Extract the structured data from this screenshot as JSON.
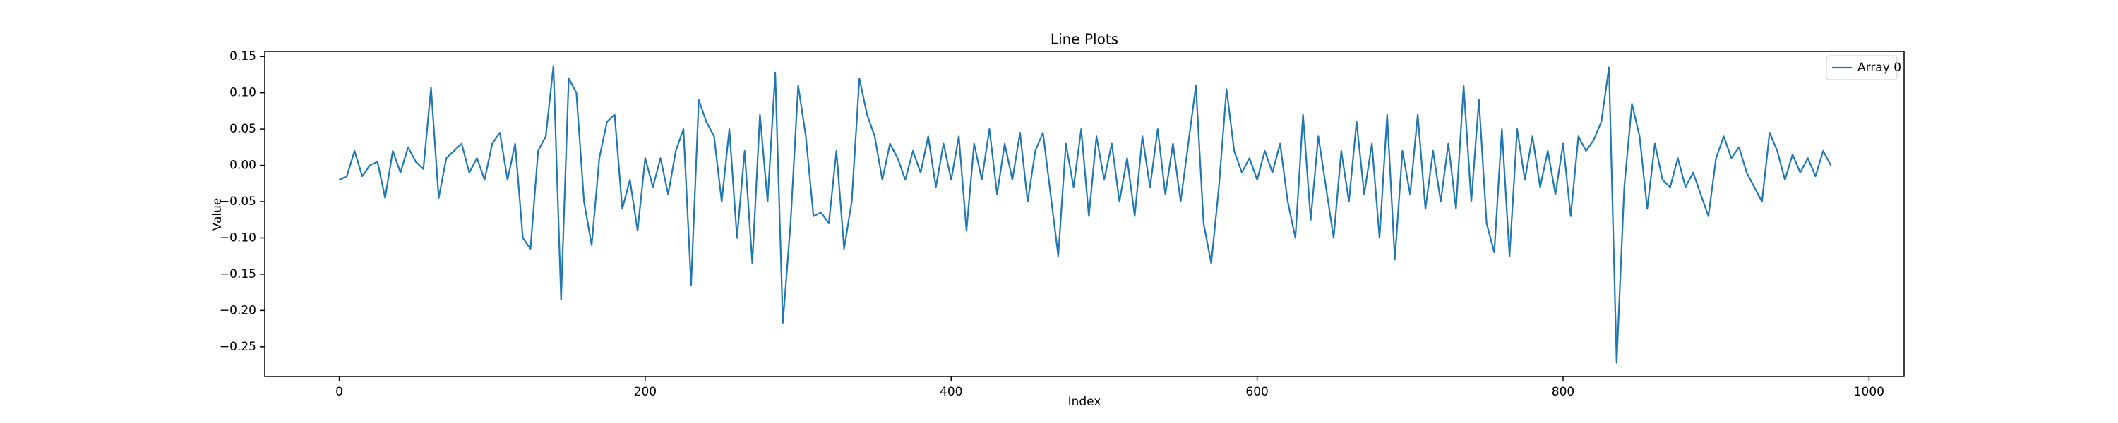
{
  "chart_data": {
    "type": "line",
    "title": "Line Plots",
    "xlabel": "Index",
    "ylabel": "Value",
    "x": [
      0,
      5,
      10,
      15,
      20,
      25,
      30,
      35,
      40,
      45,
      50,
      55,
      60,
      65,
      70,
      75,
      80,
      85,
      90,
      95,
      100,
      105,
      110,
      115,
      120,
      125,
      130,
      135,
      140,
      145,
      150,
      155,
      160,
      165,
      170,
      175,
      180,
      185,
      190,
      195,
      200,
      205,
      210,
      215,
      220,
      225,
      230,
      235,
      240,
      245,
      250,
      255,
      260,
      265,
      270,
      275,
      280,
      285,
      290,
      295,
      300,
      305,
      310,
      315,
      320,
      325,
      330,
      335,
      340,
      345,
      350,
      355,
      360,
      365,
      370,
      375,
      380,
      385,
      390,
      395,
      400,
      405,
      410,
      415,
      420,
      425,
      430,
      435,
      440,
      445,
      450,
      455,
      460,
      465,
      470,
      475,
      480,
      485,
      490,
      495,
      500,
      505,
      510,
      515,
      520,
      525,
      530,
      535,
      540,
      545,
      550,
      555,
      560,
      565,
      570,
      575,
      580,
      585,
      590,
      595,
      600,
      605,
      610,
      615,
      620,
      625,
      630,
      635,
      640,
      645,
      650,
      655,
      660,
      665,
      670,
      675,
      680,
      685,
      690,
      695,
      700,
      705,
      710,
      715,
      720,
      725,
      730,
      735,
      740,
      745,
      750,
      755,
      760,
      765,
      770,
      775,
      780,
      785,
      790,
      795,
      800,
      805,
      810,
      815,
      820,
      825,
      830,
      835,
      840,
      845,
      850,
      855,
      860,
      865,
      870,
      875,
      880,
      885,
      890,
      895,
      900,
      905,
      910,
      915,
      920,
      925,
      930,
      935,
      940,
      945,
      950,
      955,
      960,
      965,
      970,
      975
    ],
    "series": [
      {
        "name": "Array 0",
        "color": "#1f77b4",
        "values": [
          -0.02,
          -0.015,
          0.02,
          -0.015,
          0,
          0.005,
          -0.045,
          0.02,
          -0.01,
          0.025,
          0.005,
          -0.005,
          0.107,
          -0.045,
          0.01,
          0.02,
          0.03,
          -0.01,
          0.01,
          -0.02,
          0.03,
          0.045,
          -0.02,
          0.03,
          -0.1,
          -0.115,
          0.02,
          0.04,
          0.137,
          -0.185,
          0.12,
          0.1,
          -0.05,
          -0.11,
          0.01,
          0.06,
          0.07,
          -0.06,
          -0.02,
          -0.09,
          0.01,
          -0.03,
          0.01,
          -0.04,
          0.02,
          0.05,
          -0.165,
          0.09,
          0.06,
          0.04,
          -0.05,
          0.05,
          -0.1,
          0.02,
          -0.135,
          0.07,
          -0.05,
          0.128,
          -0.217,
          -0.08,
          0.11,
          0.04,
          -0.07,
          -0.065,
          -0.08,
          0.02,
          -0.115,
          -0.05,
          0.12,
          0.07,
          0.04,
          -0.02,
          0.03,
          0.01,
          -0.02,
          0.02,
          -0.01,
          0.04,
          -0.03,
          0.03,
          -0.02,
          0.04,
          -0.09,
          0.03,
          -0.02,
          0.05,
          -0.04,
          0.03,
          -0.02,
          0.045,
          -0.05,
          0.02,
          0.045,
          -0.04,
          -0.125,
          0.03,
          -0.03,
          0.05,
          -0.07,
          0.04,
          -0.02,
          0.03,
          -0.05,
          0.01,
          -0.07,
          0.04,
          -0.03,
          0.05,
          -0.04,
          0.03,
          -0.05,
          0.03,
          0.11,
          -0.08,
          -0.135,
          -0.03,
          0.105,
          0.02,
          -0.01,
          0.01,
          -0.02,
          0.02,
          -0.01,
          0.03,
          -0.05,
          -0.1,
          0.07,
          -0.075,
          0.04,
          -0.03,
          -0.1,
          0.02,
          -0.05,
          0.06,
          -0.04,
          0.03,
          -0.1,
          0.07,
          -0.13,
          0.02,
          -0.04,
          0.07,
          -0.06,
          0.02,
          -0.05,
          0.03,
          -0.06,
          0.11,
          -0.05,
          0.09,
          -0.08,
          -0.12,
          0.05,
          -0.125,
          0.05,
          -0.02,
          0.04,
          -0.03,
          0.02,
          -0.04,
          0.03,
          -0.07,
          0.04,
          0.02,
          0.035,
          0.06,
          0.135,
          -0.272,
          -0.03,
          0.085,
          0.04,
          -0.06,
          0.03,
          -0.02,
          -0.03,
          0.01,
          -0.03,
          -0.01,
          -0.04,
          -0.07,
          0.01,
          0.04,
          0.01,
          0.025,
          -0.01,
          -0.03,
          -0.05,
          0.045,
          0.02,
          -0.02,
          0.015,
          -0.01,
          0.01,
          -0.015,
          0.02,
          0
        ]
      }
    ],
    "xlim": [
      -48.7,
      1022.9
    ],
    "ylim": [
      -0.291,
      0.157
    ],
    "xticks": [
      0,
      200,
      400,
      600,
      800,
      1000
    ],
    "yticks": [
      {
        "value": -0.25,
        "label": "−0.25"
      },
      {
        "value": -0.2,
        "label": "−0.20"
      },
      {
        "value": -0.15,
        "label": "−0.15"
      },
      {
        "value": -0.1,
        "label": "−0.10"
      },
      {
        "value": -0.05,
        "label": "−0.05"
      },
      {
        "value": 0,
        "label": "0.00"
      },
      {
        "value": 0.05,
        "label": "0.05"
      },
      {
        "value": 0.1,
        "label": "0.10"
      },
      0.15
    ],
    "legend": "upper right"
  }
}
